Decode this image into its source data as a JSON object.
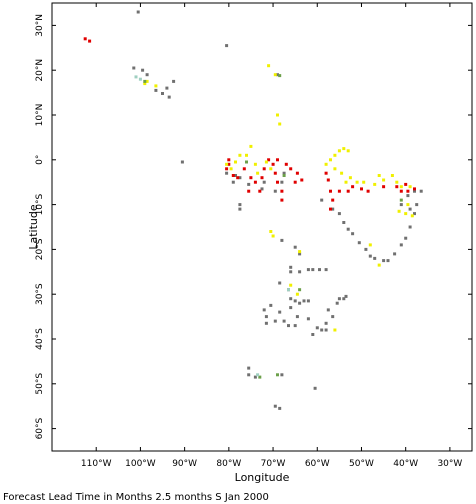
{
  "chart_data": {
    "type": "scatter",
    "xlabel": "Longitude",
    "ylabel": "Latitude",
    "caption": "Forecast Lead Time in Months 2.5 months S Jan 2000",
    "xlim": [
      -120,
      -25
    ],
    "ylim": [
      -65,
      35
    ],
    "x_ticks": [
      {
        "value": -110,
        "label": "110°W"
      },
      {
        "value": -100,
        "label": "100°W"
      },
      {
        "value": -90,
        "label": "90°W"
      },
      {
        "value": -80,
        "label": "80°W"
      },
      {
        "value": -70,
        "label": "70°W"
      },
      {
        "value": -60,
        "label": "60°W"
      },
      {
        "value": -50,
        "label": "50°W"
      },
      {
        "value": -40,
        "label": "40°W"
      },
      {
        "value": -30,
        "label": "30°W"
      }
    ],
    "y_ticks": [
      {
        "value": 30,
        "label": "30°N"
      },
      {
        "value": 20,
        "label": "20°N"
      },
      {
        "value": 10,
        "label": "10°N"
      },
      {
        "value": 0,
        "label": "0°"
      },
      {
        "value": -10,
        "label": "10°S"
      },
      {
        "value": -20,
        "label": "20°S"
      },
      {
        "value": -30,
        "label": "30°S"
      },
      {
        "value": -40,
        "label": "40°S"
      },
      {
        "value": -50,
        "label": "50°S"
      },
      {
        "value": -60,
        "label": "60°S"
      }
    ],
    "grid": false,
    "colors": {
      "gray": "#707070",
      "red": "#e00000",
      "yellow": "#f0f000",
      "green": "#6ca04a",
      "teal": "#9fcfc0"
    },
    "series": [
      {
        "color": "gray",
        "points": [
          [
            -100.5,
            33
          ],
          [
            -80.5,
            25.5
          ],
          [
            -101.5,
            20.5
          ],
          [
            -99.5,
            20
          ],
          [
            -98.5,
            19
          ],
          [
            -96.5,
            15.5
          ],
          [
            -95,
            14.8
          ],
          [
            -93.5,
            14
          ],
          [
            -94,
            16
          ],
          [
            -92.5,
            17.5
          ],
          [
            -69,
            19
          ],
          [
            -90.5,
            -0.5
          ],
          [
            -80.5,
            -3
          ],
          [
            -78.5,
            -3.5
          ],
          [
            -77.5,
            -4
          ],
          [
            -79,
            -5
          ],
          [
            -75.5,
            -5.5
          ],
          [
            -77.5,
            -10
          ],
          [
            -77.5,
            -11
          ],
          [
            -72.5,
            -6.5
          ],
          [
            -72,
            -5
          ],
          [
            -69.5,
            -7
          ],
          [
            -68,
            -5
          ],
          [
            -67.5,
            -3
          ],
          [
            -59,
            -9
          ],
          [
            -56.5,
            -11
          ],
          [
            -55,
            -12
          ],
          [
            -54,
            -14
          ],
          [
            -53,
            -15.5
          ],
          [
            -52,
            -16.5
          ],
          [
            -50.5,
            -18.5
          ],
          [
            -49,
            -20
          ],
          [
            -48,
            -21.5
          ],
          [
            -47,
            -22
          ],
          [
            -45,
            -22.5
          ],
          [
            -44,
            -22.5
          ],
          [
            -42.5,
            -21
          ],
          [
            -41,
            -19
          ],
          [
            -40,
            -17.5
          ],
          [
            -39,
            -15
          ],
          [
            -38,
            -12
          ],
          [
            -37.5,
            -10
          ],
          [
            -39.5,
            -8
          ],
          [
            -38,
            -7
          ],
          [
            -36.5,
            -7
          ],
          [
            -41,
            -10
          ],
          [
            -39,
            -11
          ],
          [
            -68,
            -18
          ],
          [
            -65,
            -19.5
          ],
          [
            -64,
            -21
          ],
          [
            -66,
            -24
          ],
          [
            -66,
            -25
          ],
          [
            -64,
            -25
          ],
          [
            -62,
            -24.5
          ],
          [
            -61,
            -24.5
          ],
          [
            -59.5,
            -24.5
          ],
          [
            -58,
            -24.5
          ],
          [
            -68.5,
            -27.5
          ],
          [
            -66.5,
            -29
          ],
          [
            -66,
            -31
          ],
          [
            -65,
            -31.5
          ],
          [
            -64,
            -32
          ],
          [
            -63,
            -31.5
          ],
          [
            -62,
            -31.5
          ],
          [
            -66,
            -33
          ],
          [
            -68.5,
            -34
          ],
          [
            -72,
            -33.5
          ],
          [
            -70.5,
            -32.5
          ],
          [
            -71.5,
            -35
          ],
          [
            -71.5,
            -36.5
          ],
          [
            -69.5,
            -36
          ],
          [
            -67.5,
            -36
          ],
          [
            -66.5,
            -37
          ],
          [
            -65,
            -37
          ],
          [
            -64.5,
            -35
          ],
          [
            -62,
            -35.5
          ],
          [
            -60,
            -37.5
          ],
          [
            -61,
            -39
          ],
          [
            -59,
            -38
          ],
          [
            -58,
            -38
          ],
          [
            -58,
            -36.5
          ],
          [
            -56.5,
            -35
          ],
          [
            -57.5,
            -33.5
          ],
          [
            -55.5,
            -32
          ],
          [
            -55,
            -31
          ],
          [
            -54,
            -31
          ],
          [
            -53.5,
            -30.5
          ],
          [
            -75.5,
            -46.5
          ],
          [
            -75.5,
            -48
          ],
          [
            -74,
            -48.5
          ],
          [
            -68,
            -48
          ],
          [
            -60.5,
            -51
          ],
          [
            -68.5,
            -55.5
          ],
          [
            -69.5,
            -55
          ]
        ]
      },
      {
        "color": "red",
        "points": [
          [
            -112.5,
            27
          ],
          [
            -111.5,
            26.5
          ],
          [
            -80,
            0
          ],
          [
            -80,
            -1
          ],
          [
            -80.5,
            -2
          ],
          [
            -79,
            -3.5
          ],
          [
            -78,
            -4
          ],
          [
            -76.5,
            -2
          ],
          [
            -75,
            -4
          ],
          [
            -74,
            -5
          ],
          [
            -73,
            -7
          ],
          [
            -75.5,
            -7
          ],
          [
            -72.5,
            -4
          ],
          [
            -72,
            -2
          ],
          [
            -71,
            0
          ],
          [
            -70,
            -1
          ],
          [
            -69.5,
            -3
          ],
          [
            -69,
            -5
          ],
          [
            -68,
            -7
          ],
          [
            -68,
            -9
          ],
          [
            -69,
            0
          ],
          [
            -67,
            -1
          ],
          [
            -66,
            -2
          ],
          [
            -64.5,
            -3
          ],
          [
            -63.5,
            -4.5
          ],
          [
            -65,
            -5
          ],
          [
            -58,
            -3
          ],
          [
            -57.5,
            -4.5
          ],
          [
            -57,
            -7
          ],
          [
            -56.5,
            -9
          ],
          [
            -57,
            -11
          ],
          [
            -55,
            -7
          ],
          [
            -53,
            -7
          ],
          [
            -52,
            -6
          ],
          [
            -50,
            -6.5
          ],
          [
            -48.5,
            -7
          ],
          [
            -45,
            -6
          ],
          [
            -42,
            -6
          ],
          [
            -41,
            -7
          ],
          [
            -40,
            -5.5
          ],
          [
            -38,
            -6.5
          ],
          [
            -39.5,
            -7
          ]
        ]
      },
      {
        "color": "yellow",
        "points": [
          [
            -99,
            17
          ],
          [
            -96.5,
            16.5
          ],
          [
            -98.5,
            17.5
          ],
          [
            -71,
            21
          ],
          [
            -69.5,
            19
          ],
          [
            -69,
            10
          ],
          [
            -68.5,
            8
          ],
          [
            -80.5,
            -1
          ],
          [
            -79.5,
            -2
          ],
          [
            -77.5,
            1
          ],
          [
            -78.5,
            -0.5
          ],
          [
            -76,
            1
          ],
          [
            -75,
            3
          ],
          [
            -74,
            -1
          ],
          [
            -73.5,
            -3
          ],
          [
            -71.5,
            -0.5
          ],
          [
            -70.5,
            -2
          ],
          [
            -55,
            2
          ],
          [
            -54,
            2.5
          ],
          [
            -53,
            2
          ],
          [
            -56,
            1
          ],
          [
            -57,
            0
          ],
          [
            -58,
            -1
          ],
          [
            -56,
            -2
          ],
          [
            -54.5,
            -3
          ],
          [
            -53.5,
            -5
          ],
          [
            -52.5,
            -4
          ],
          [
            -51,
            -5
          ],
          [
            -49.5,
            -5
          ],
          [
            -47,
            -5.5
          ],
          [
            -46,
            -3.5
          ],
          [
            -45,
            -4.5
          ],
          [
            -43,
            -3.5
          ],
          [
            -42,
            -5
          ],
          [
            -41,
            -6
          ],
          [
            -39,
            -6
          ],
          [
            -39.5,
            -10
          ],
          [
            -40,
            -12
          ],
          [
            -41.5,
            -11.5
          ],
          [
            -38.5,
            -12.5
          ],
          [
            -70.5,
            -16
          ],
          [
            -70,
            -17
          ],
          [
            -64,
            -20.5
          ],
          [
            -48,
            -19
          ],
          [
            -46,
            -23.5
          ],
          [
            -66,
            -28
          ],
          [
            -64.5,
            -30
          ],
          [
            -56,
            -38
          ]
        ]
      },
      {
        "color": "green",
        "points": [
          [
            -68.5,
            18.8
          ],
          [
            -99,
            17.5
          ],
          [
            -76,
            -0.5
          ],
          [
            -67.5,
            -3.5
          ],
          [
            -41,
            -9
          ],
          [
            -64,
            -29
          ],
          [
            -73,
            -48.5
          ],
          [
            -69,
            -48
          ]
        ]
      },
      {
        "color": "teal",
        "points": [
          [
            -101,
            18.5
          ],
          [
            -100,
            18
          ],
          [
            -73.5,
            -48
          ],
          [
            -66.5,
            -29
          ]
        ]
      }
    ]
  }
}
